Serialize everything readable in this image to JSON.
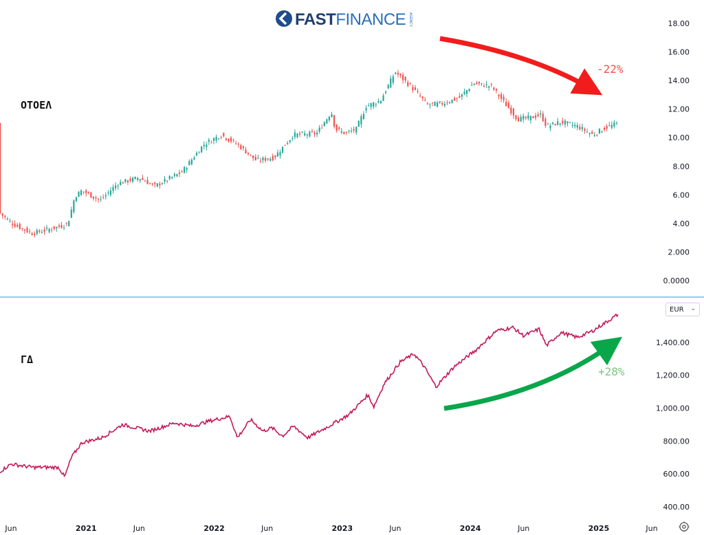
{
  "logo": {
    "part1": "FAST",
    "part2": "FINANCE",
    "small": "AGENCY"
  },
  "colors": {
    "up": "#26a69a",
    "down": "#ef5350",
    "line": "#c2185b",
    "divider": "#5fc4e8",
    "red_arrow": "#f21c1c",
    "green_arrow": "#0aa64a"
  },
  "currency": {
    "value": "EUR"
  },
  "chart_data": [
    {
      "type": "candlestick",
      "series_label": "ΟΤΟΕΛ",
      "ylim": [
        0,
        18
      ],
      "y_ticks": [
        "0.0000",
        "2.000",
        "4.00",
        "6.00",
        "8.00",
        "10.00",
        "12.00",
        "14.00",
        "16.00",
        "18.00"
      ],
      "annotation": {
        "text": "-22%",
        "color": "#f05252"
      },
      "anchors": [
        [
          "2020-05-01",
          4.7
        ],
        [
          "2020-06-10",
          3.9
        ],
        [
          "2020-08-01",
          3.3
        ],
        [
          "2020-10-20",
          3.8
        ],
        [
          "2020-11-10",
          4.0
        ],
        [
          "2020-11-30",
          5.9
        ],
        [
          "2020-12-20",
          6.3
        ],
        [
          "2021-02-10",
          5.6
        ],
        [
          "2021-04-01",
          6.8
        ],
        [
          "2021-06-01",
          7.2
        ],
        [
          "2021-07-15",
          6.6
        ],
        [
          "2021-10-01",
          7.6
        ],
        [
          "2021-12-01",
          9.5
        ],
        [
          "2022-01-20",
          10.2
        ],
        [
          "2022-03-10",
          9.5
        ],
        [
          "2022-05-01",
          8.4
        ],
        [
          "2022-06-20",
          8.6
        ],
        [
          "2022-08-15",
          10.2
        ],
        [
          "2022-10-20",
          10.3
        ],
        [
          "2022-12-01",
          11.8
        ],
        [
          "2022-12-12",
          10.6
        ],
        [
          "2023-01-10",
          10.3
        ],
        [
          "2023-02-10",
          10.6
        ],
        [
          "2023-03-10",
          12.2
        ],
        [
          "2023-04-20",
          12.6
        ],
        [
          "2023-06-01",
          14.6
        ],
        [
          "2023-07-15",
          13.6
        ],
        [
          "2023-09-01",
          12.3
        ],
        [
          "2023-10-15",
          12.4
        ],
        [
          "2023-12-01",
          12.8
        ],
        [
          "2024-01-10",
          13.8
        ],
        [
          "2024-03-01",
          13.6
        ],
        [
          "2024-04-15",
          12.2
        ],
        [
          "2024-05-15",
          11.3
        ],
        [
          "2024-06-20",
          11.4
        ],
        [
          "2024-07-20",
          11.6
        ],
        [
          "2024-08-05",
          10.8
        ],
        [
          "2024-09-15",
          11.1
        ],
        [
          "2024-11-01",
          10.8
        ],
        [
          "2024-12-15",
          10.2
        ],
        [
          "2025-01-20",
          10.7
        ],
        [
          "2025-02-25",
          11.0
        ]
      ]
    },
    {
      "type": "line",
      "series_label": "ΓΔ",
      "ylim": [
        400,
        1600
      ],
      "y_ticks": [
        "400.00",
        "600.00",
        "800.00",
        "1,000.00",
        "1,200.00",
        "1,400.00"
      ],
      "annotation": {
        "text": "+28%",
        "color": "#7dc67d"
      },
      "anchors": [
        [
          "2020-05-01",
          615
        ],
        [
          "2020-06-01",
          660
        ],
        [
          "2020-08-01",
          640
        ],
        [
          "2020-10-15",
          640
        ],
        [
          "2020-11-01",
          580
        ],
        [
          "2020-11-20",
          700
        ],
        [
          "2020-12-20",
          790
        ],
        [
          "2021-02-15",
          820
        ],
        [
          "2021-04-15",
          900
        ],
        [
          "2021-07-01",
          860
        ],
        [
          "2021-09-10",
          910
        ],
        [
          "2021-11-01",
          890
        ],
        [
          "2021-12-15",
          920
        ],
        [
          "2022-02-15",
          950
        ],
        [
          "2022-03-08",
          820
        ],
        [
          "2022-04-15",
          930
        ],
        [
          "2022-05-20",
          860
        ],
        [
          "2022-06-15",
          880
        ],
        [
          "2022-07-15",
          830
        ],
        [
          "2022-08-15",
          890
        ],
        [
          "2022-09-25",
          820
        ],
        [
          "2022-11-15",
          880
        ],
        [
          "2023-01-20",
          960
        ],
        [
          "2023-03-15",
          1080
        ],
        [
          "2023-04-01",
          1010
        ],
        [
          "2023-05-01",
          1150
        ],
        [
          "2023-06-15",
          1280
        ],
        [
          "2023-07-25",
          1330
        ],
        [
          "2023-08-20",
          1260
        ],
        [
          "2023-09-25",
          1130
        ],
        [
          "2023-11-15",
          1250
        ],
        [
          "2024-01-15",
          1350
        ],
        [
          "2024-03-15",
          1470
        ],
        [
          "2024-05-01",
          1490
        ],
        [
          "2024-06-01",
          1440
        ],
        [
          "2024-07-15",
          1480
        ],
        [
          "2024-08-05",
          1380
        ],
        [
          "2024-09-15",
          1460
        ],
        [
          "2024-11-01",
          1430
        ],
        [
          "2024-12-15",
          1470
        ],
        [
          "2025-01-20",
          1520
        ],
        [
          "2025-02-25",
          1570
        ]
      ]
    }
  ],
  "x_axis": {
    "ticks": [
      {
        "date": "2020-06-01",
        "label": "Jun",
        "bold": false
      },
      {
        "date": "2021-01-01",
        "label": "2021",
        "bold": true
      },
      {
        "date": "2021-06-01",
        "label": "Jun",
        "bold": false
      },
      {
        "date": "2022-01-01",
        "label": "2022",
        "bold": true
      },
      {
        "date": "2022-06-01",
        "label": "Jun",
        "bold": false
      },
      {
        "date": "2023-01-01",
        "label": "2023",
        "bold": true
      },
      {
        "date": "2023-06-01",
        "label": "Jun",
        "bold": false
      },
      {
        "date": "2024-01-01",
        "label": "2024",
        "bold": true
      },
      {
        "date": "2024-06-01",
        "label": "Jun",
        "bold": false
      },
      {
        "date": "2025-01-01",
        "label": "2025",
        "bold": true
      },
      {
        "date": "2025-06-01",
        "label": "Jun",
        "bold": false
      }
    ]
  }
}
